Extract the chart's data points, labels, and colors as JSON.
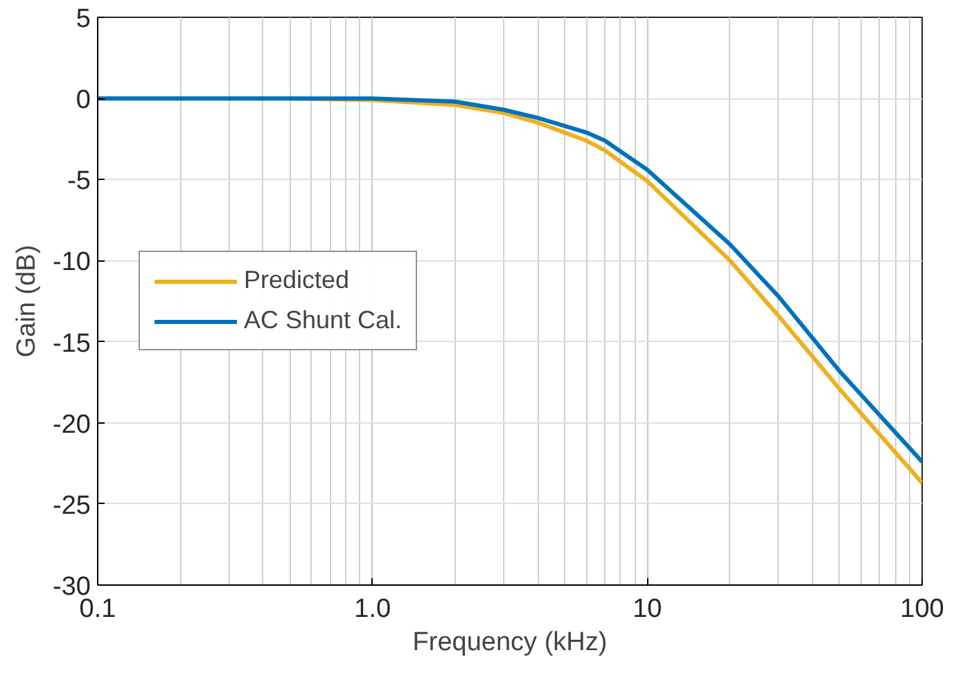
{
  "chart_data": {
    "type": "line",
    "xlabel": "Frequency (kHz)",
    "ylabel": "Gain (dB)",
    "log": "x",
    "x": [
      0.1,
      0.2,
      0.5,
      1,
      2,
      3,
      4,
      5,
      6,
      7,
      10,
      20,
      30,
      50,
      100
    ],
    "series": [
      {
        "name": "Predicted",
        "color": "#edb120",
        "values": [
          0,
          0,
          0,
          -0.1,
          -0.4,
          -0.9,
          -1.5,
          -2.1,
          -2.6,
          -3.2,
          -5.1,
          -10.0,
          -13.4,
          -17.9,
          -23.7
        ]
      },
      {
        "name": "AC Shunt Cal.",
        "color": "#0072bd",
        "values": [
          0,
          0,
          0,
          0,
          -0.2,
          -0.7,
          -1.2,
          -1.7,
          -2.1,
          -2.6,
          -4.4,
          -9.0,
          -12.2,
          -16.8,
          -22.4
        ]
      }
    ],
    "xlim": [
      0.1,
      100
    ],
    "xticks": [
      {
        "value": 0.1,
        "label": "0.1"
      },
      {
        "value": 1,
        "label": "1.0"
      },
      {
        "value": 10,
        "label": "10"
      },
      {
        "value": 100,
        "label": "100"
      }
    ],
    "ylim": [
      -30,
      5
    ],
    "yticks": [
      -30,
      -25,
      -20,
      -15,
      -10,
      -5,
      0,
      5
    ],
    "grid": true,
    "legend": "left",
    "marker": "none",
    "line_style": "solid"
  }
}
